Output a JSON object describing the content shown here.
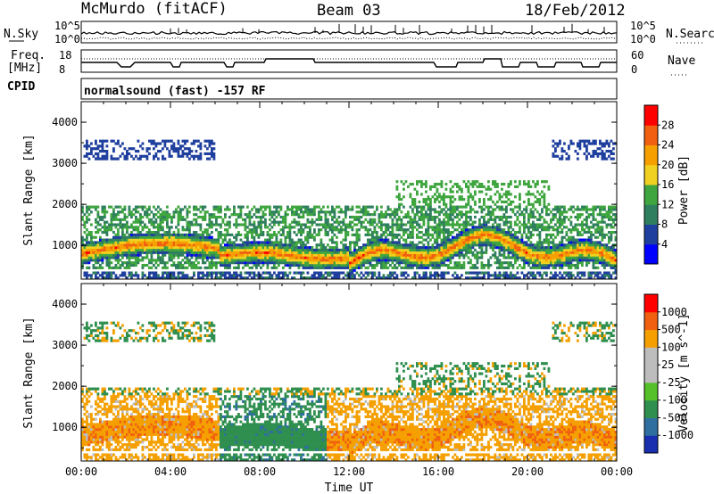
{
  "header": {
    "station": "McMurdo (fitACF)",
    "beam": "Beam 03",
    "date": "18/Feb/2012"
  },
  "noise_panel": {
    "left_label": "N.Sky",
    "right_label": "N.Search",
    "tick_top": "10^5",
    "tick_bottom": "10^0"
  },
  "freq_panel": {
    "left_label_1": "Freq.",
    "left_label_2": "[MHz]",
    "right_label": "Nave",
    "left_ticks": [
      "18",
      "8"
    ],
    "right_ticks": [
      "60",
      "0"
    ]
  },
  "cpid": {
    "label": "CPID",
    "text": "normalsound (fast) -157 RF"
  },
  "colors": {
    "power_scale": [
      "#0000ff",
      "#1f3f9e",
      "#2f7f5f",
      "#3fa63f",
      "#f0d020",
      "#f5a000",
      "#f06010",
      "#ff0000"
    ],
    "velocity_scale": [
      "#1a2fb0",
      "#2f6f9f",
      "#2f8f4f",
      "#55c02a",
      "#bdbdbd",
      "#bdbdbd",
      "#f5a000",
      "#f06010",
      "#ff0000"
    ]
  },
  "chart_data": [
    {
      "type": "heatmap",
      "panel": "power",
      "ylabel": "Slant Range [km]",
      "ylim": [
        180,
        4500
      ],
      "yticks": [
        "1000",
        "2000",
        "3000",
        "4000"
      ],
      "xlim": [
        0,
        24
      ],
      "xticks": [
        "00:00",
        "04:00",
        "08:00",
        "12:00",
        "16:00",
        "20:00",
        "00:00"
      ],
      "colorbar": {
        "label": "Power [dB]",
        "ticks": [
          "4",
          "8",
          "12",
          "16",
          "20",
          "24",
          "28"
        ],
        "range": [
          0,
          30
        ]
      }
    },
    {
      "type": "heatmap",
      "panel": "velocity",
      "ylabel": "Slant Range [km]",
      "ylim": [
        180,
        4500
      ],
      "yticks": [
        "1000",
        "2000",
        "3000",
        "4000"
      ],
      "xlim": [
        0,
        24
      ],
      "xticks": [
        "00:00",
        "04:00",
        "08:00",
        "12:00",
        "16:00",
        "20:00",
        "00:00"
      ],
      "xlabel": "Time UT",
      "colorbar": {
        "label": "Velocity [m s^-1]",
        "ticks": [
          "1000",
          "500",
          "100",
          "25",
          "-25",
          "-100",
          "-500",
          "-1000"
        ]
      }
    }
  ]
}
